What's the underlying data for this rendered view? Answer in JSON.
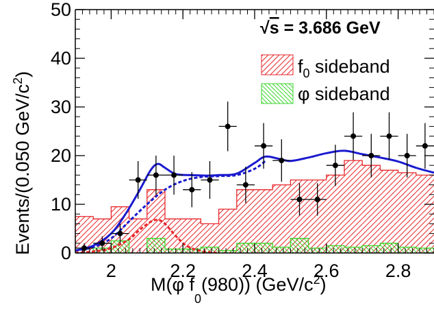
{
  "chart_data": {
    "type": "scatter",
    "title": "",
    "xlabel": "M(φ f0(980)) (GeV/c2)",
    "xlabel_parts": {
      "lead": "M(",
      "phi": "φ",
      "f": " f",
      "f_sub": "0",
      "mass": "(980)) (GeV/c",
      "sup": "2",
      "close": ")"
    },
    "ylabel": "Events/(0.050 GeV/c2)",
    "ylabel_parts": {
      "main": "Events/(0.050 GeV/c",
      "sup": "2",
      "close": ")"
    },
    "xlim": [
      1.9,
      2.9
    ],
    "ylim": [
      0,
      50
    ],
    "x_ticks": [
      2.0,
      2.2,
      2.4,
      2.6,
      2.8
    ],
    "x_tick_labels": [
      "2",
      "2.2",
      "2.4",
      "2.6",
      "2.8"
    ],
    "y_ticks": [
      0,
      10,
      20,
      30,
      40,
      50
    ],
    "y_tick_labels": [
      "0",
      "10",
      "20",
      "30",
      "40",
      "50"
    ],
    "annotation": {
      "sqrt": "√",
      "s": "s",
      "rest": " = 3.686 GeV"
    },
    "legend": [
      {
        "label_main": "f",
        "label_sub": "0",
        "label_rest": " sideband",
        "color": "#e8262a",
        "style": "hatch-forward"
      },
      {
        "label_main": "φ",
        "label_sub": "",
        "label_rest": " sideband",
        "color": "#3ad62a",
        "style": "hatch-backward"
      }
    ],
    "bin_width": 0.05,
    "data": {
      "name": "Data",
      "color": "#000000",
      "x": [
        1.925,
        1.975,
        2.025,
        2.075,
        2.125,
        2.175,
        2.225,
        2.275,
        2.325,
        2.375,
        2.425,
        2.475,
        2.525,
        2.575,
        2.625,
        2.675,
        2.725,
        2.775,
        2.825,
        2.875
      ],
      "y": [
        1,
        2,
        4,
        15,
        16,
        16,
        13,
        15,
        26,
        14,
        22,
        19,
        11,
        11,
        18,
        24,
        20,
        24,
        20,
        22
      ]
    },
    "f0_sideband": {
      "color": "#e8262a",
      "bin_edges": [
        1.9,
        1.95,
        2.0,
        2.05,
        2.1,
        2.15,
        2.2,
        2.25,
        2.3,
        2.35,
        2.4,
        2.45,
        2.5,
        2.55,
        2.6,
        2.65,
        2.7,
        2.75,
        2.8,
        2.85,
        2.9
      ],
      "values": [
        7.5,
        7,
        9.5,
        7,
        13,
        7,
        7,
        6,
        9,
        13,
        13,
        14,
        15,
        15,
        16,
        19,
        18,
        17,
        16.5,
        16
      ]
    },
    "phi_sideband": {
      "color": "#3ad62a",
      "bin_edges": [
        1.9,
        1.95,
        2.0,
        2.05,
        2.1,
        2.15,
        2.2,
        2.25,
        2.3,
        2.35,
        2.4,
        2.45,
        2.5,
        2.55,
        2.6,
        2.65,
        2.7,
        2.75,
        2.8,
        2.85,
        2.9
      ],
      "values": [
        0,
        1,
        2.5,
        0,
        3,
        0.8,
        0.8,
        1.2,
        0.5,
        2,
        2,
        1.2,
        3,
        1,
        1.5,
        1.2,
        1.5,
        2,
        1.2,
        1
      ]
    },
    "fit_total": {
      "color": "#1a1acf",
      "style": "solid",
      "x": [
        1.9,
        1.95,
        2.0,
        2.04,
        2.08,
        2.11,
        2.13,
        2.15,
        2.18,
        2.22,
        2.27,
        2.3,
        2.35,
        2.4,
        2.43,
        2.47,
        2.5,
        2.55,
        2.6,
        2.65,
        2.7,
        2.75,
        2.8,
        2.85,
        2.9
      ],
      "y": [
        0.5,
        1.5,
        4,
        8,
        13,
        17,
        18.3,
        17.5,
        16.2,
        16,
        15.9,
        16,
        16.3,
        18.5,
        19.8,
        19.3,
        18.9,
        19.6,
        20.5,
        21,
        20.3,
        19.6,
        18.8,
        17.5,
        16.5
      ]
    },
    "fit_background": {
      "color": "#1a1acf",
      "style": "dashed",
      "x": [
        1.9,
        1.95,
        2.0,
        2.05,
        2.1,
        2.15,
        2.2,
        2.25,
        2.3,
        2.35,
        2.4,
        2.43
      ],
      "y": [
        0.5,
        1.2,
        3,
        6.5,
        10,
        13,
        14.8,
        15.6,
        15.8,
        16,
        17.3,
        18.9
      ]
    },
    "fit_signal": {
      "color": "#e8262a",
      "style": "dashed",
      "x": [
        1.9,
        1.95,
        2.0,
        2.05,
        2.08,
        2.11,
        2.13,
        2.15,
        2.18,
        2.21,
        2.25,
        2.3
      ],
      "y": [
        0,
        0.3,
        1,
        2.8,
        4.8,
        6.4,
        6.8,
        6,
        3.5,
        1.5,
        0.4,
        0
      ]
    }
  }
}
